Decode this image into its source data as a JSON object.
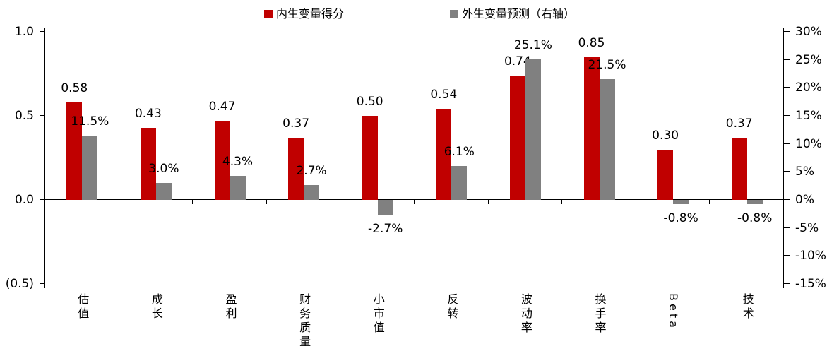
{
  "colors": {
    "endogenous": "#c00000",
    "exogenous": "#808080",
    "axis": "#000000",
    "background": "#ffffff"
  },
  "legend": [
    {
      "label": "内生变量得分",
      "color": "#c00000"
    },
    {
      "label": "外生变量预测（右轴）",
      "color": "#808080"
    }
  ],
  "chart_data": {
    "type": "bar",
    "categories": [
      "估值",
      "成长",
      "盈利",
      "财务质量",
      "小市值",
      "反转",
      "波动率",
      "换手率",
      "Beta",
      "技术"
    ],
    "series": [
      {
        "name": "内生变量得分",
        "axis": "left",
        "color": "#c00000",
        "values": [
          0.58,
          0.43,
          0.47,
          0.37,
          0.5,
          0.54,
          0.74,
          0.85,
          0.3,
          0.37
        ],
        "labels": [
          "0.58",
          "0.43",
          "0.47",
          "0.37",
          "0.50",
          "0.54",
          "0.74",
          "0.85",
          "0.30",
          "0.37"
        ]
      },
      {
        "name": "外生变量预测（右轴）",
        "axis": "right",
        "color": "#808080",
        "values": [
          11.5,
          3.0,
          4.3,
          2.7,
          -2.7,
          6.1,
          25.1,
          21.5,
          -0.8,
          -0.8
        ],
        "labels": [
          "11.5%",
          "3.0%",
          "4.3%",
          "2.7%",
          "-2.7%",
          "6.1%",
          "25.1%",
          "21.5%",
          "-0.8%",
          "-0.8%"
        ]
      }
    ],
    "left_axis": {
      "ticks": [
        "1.0",
        "0.5",
        "0.0",
        "(0.5)"
      ],
      "tick_values": [
        1.0,
        0.5,
        0.0,
        -0.5
      ],
      "min": -0.5,
      "max": 1.0
    },
    "right_axis": {
      "ticks": [
        "30%",
        "25%",
        "20%",
        "15%",
        "10%",
        "5%",
        "0%",
        "-5%",
        "-10%",
        "-15%"
      ],
      "tick_values": [
        30,
        25,
        20,
        15,
        10,
        5,
        0,
        -5,
        -10,
        -15
      ],
      "min": -15,
      "max": 30
    },
    "grid": false,
    "legend_position": "top-center"
  }
}
